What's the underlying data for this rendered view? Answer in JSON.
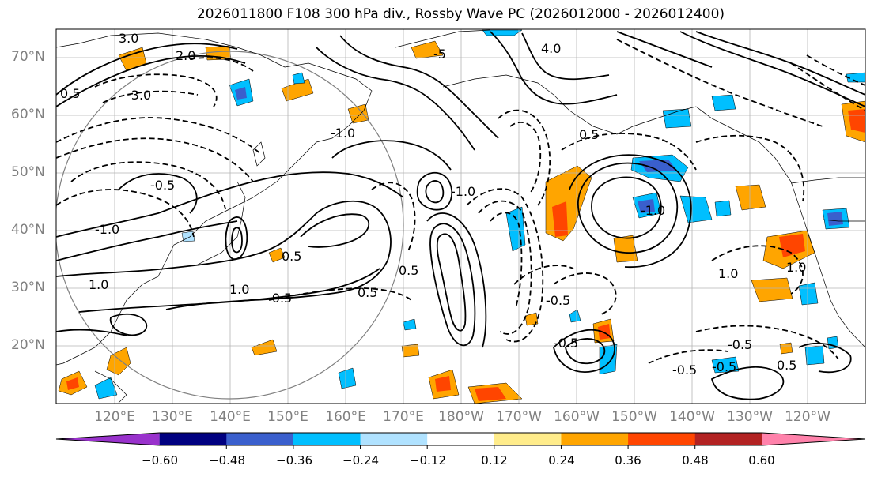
{
  "title": "2026011800 F108 300 hPa div., Rossby Wave PC (2026012000 - 2026012400)",
  "lat_labels": [
    "70°N",
    "60°N",
    "50°N",
    "40°N",
    "30°N",
    "20°N"
  ],
  "lon_labels": [
    "120°E",
    "130°E",
    "140°E",
    "150°E",
    "160°E",
    "170°E",
    "180°W",
    "170°W",
    "160°W",
    "150°W",
    "140°W",
    "130°W",
    "120°W"
  ],
  "colorbar": {
    "colors": [
      "#9932cc",
      "#000080",
      "#3a5fcd",
      "#00bfff",
      "#b0e2ff",
      "#ffffff",
      "#ffec8b",
      "#ffa500",
      "#ff4500",
      "#b22222",
      "#ff82ab"
    ],
    "ticks": [
      "−0.60",
      "−0.48",
      "−0.36",
      "−0.24",
      "−0.12",
      "0.12",
      "0.24",
      "0.36",
      "0.48",
      "0.60"
    ]
  },
  "contour_labels": [
    {
      "text": "3.0"
    },
    {
      "text": "2.0"
    },
    {
      "text": "-3.0"
    },
    {
      "text": "0.5"
    },
    {
      "text": "-0.5"
    },
    {
      "text": "-1.0"
    },
    {
      "text": "1.0"
    },
    {
      "text": "-0.5"
    },
    {
      "text": "0.5"
    },
    {
      "text": "-5"
    },
    {
      "text": "4.0"
    },
    {
      "text": "-1.0"
    },
    {
      "text": "0.5"
    },
    {
      "text": "1.0"
    },
    {
      "text": "-1.0"
    },
    {
      "text": "0.5"
    },
    {
      "text": "-0.5"
    },
    {
      "text": "-0.5"
    },
    {
      "text": "0.5"
    },
    {
      "text": "-1.0"
    },
    {
      "text": "1.0"
    },
    {
      "text": "-0.5"
    },
    {
      "text": "-0.5"
    },
    {
      "text": "0.5"
    },
    {
      "text": "1.0"
    },
    {
      "text": "-0.5"
    }
  ]
}
